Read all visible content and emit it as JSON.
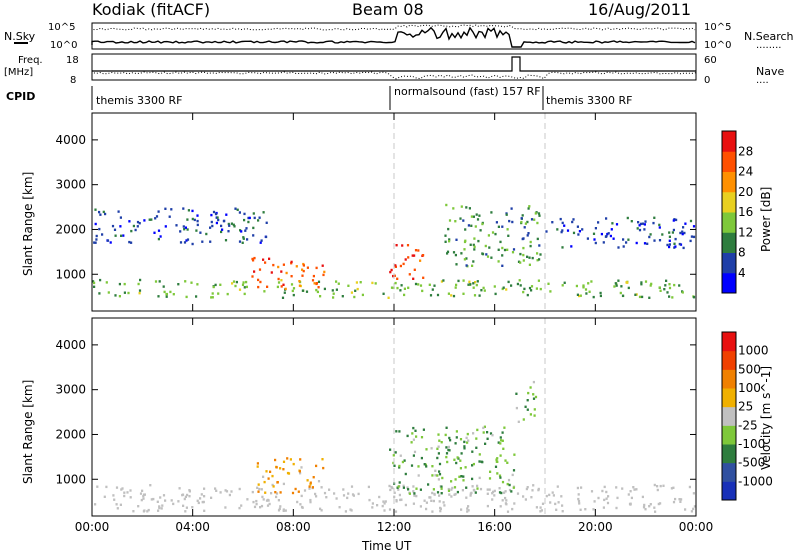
{
  "header": {
    "title": "Kodiak (fitACF)",
    "beam": "Beam 08",
    "date": "16/Aug/2011"
  },
  "strip": {
    "nsky_label": "N.Sky",
    "nsearch_label": "N.Search",
    "nsearch_key": "........",
    "left_ticks": [
      "10^5",
      "10^0"
    ],
    "right_ticks": [
      "10^5",
      "10^0"
    ],
    "freq_label": "Freq.",
    "freq_unit": "[MHz]",
    "freq_ticks": [
      "18",
      "8"
    ],
    "nave_label": "Nave",
    "nave_key": "....",
    "nave_ticks": [
      "60",
      "0"
    ],
    "cpid_label": "CPID",
    "cpid_segments": [
      {
        "label": "themis 3300 RF",
        "start": 0,
        "end": 12
      },
      {
        "label": "normalsound (fast) 157 RF",
        "start": 12,
        "end": 18
      },
      {
        "label": "themis 3300 RF",
        "start": 18,
        "end": 24
      }
    ]
  },
  "colors": {
    "frame": "#000000",
    "guide": "#c8c8c8",
    "ground_scatter": "#c0c0c0"
  },
  "chart_data": [
    {
      "type": "heatmap",
      "name": "power",
      "xlabel": "Time UT",
      "ylabel": "Slant Range [km]",
      "xlim": [
        0,
        24
      ],
      "ylim": [
        180,
        4600
      ],
      "x_ticks": [
        "00:00",
        "04:00",
        "08:00",
        "12:00",
        "16:00",
        "20:00",
        "00:00"
      ],
      "y_ticks": [
        1000,
        2000,
        3000,
        4000
      ],
      "colorbar_label": "Power [dB]",
      "colorbar_ticks": [
        "28",
        "24",
        "20",
        "16",
        "12",
        "8",
        "4"
      ],
      "colorbar_colors": [
        "#0000ff",
        "#1f3fa8",
        "#2e7d3e",
        "#7ec83a",
        "#e8d020",
        "#ff9000",
        "#ff5000",
        "#e81010"
      ],
      "ranges": [
        0,
        30
      ],
      "scatter_regions": [
        {
          "t0": 0,
          "t1": 24,
          "r0": 500,
          "r1": 900,
          "v": 12
        },
        {
          "t0": 6.3,
          "t1": 9.2,
          "r0": 700,
          "r1": 1400,
          "v": 24
        },
        {
          "t0": 11.8,
          "t1": 13.2,
          "r0": 900,
          "r1": 1700,
          "v": 26
        },
        {
          "t0": 0,
          "t1": 7,
          "r0": 1700,
          "r1": 2500,
          "v": 6
        },
        {
          "t0": 14,
          "t1": 17.8,
          "r0": 1200,
          "r1": 2600,
          "v": 10
        },
        {
          "t0": 18,
          "t1": 24,
          "r0": 1600,
          "r1": 2300,
          "v": 5
        }
      ]
    },
    {
      "type": "heatmap",
      "name": "velocity",
      "xlabel": "Time UT",
      "ylabel": "Slant Range [km]",
      "xlim": [
        0,
        24
      ],
      "ylim": [
        180,
        4600
      ],
      "x_ticks": [
        "00:00",
        "04:00",
        "08:00",
        "12:00",
        "16:00",
        "20:00",
        "00:00"
      ],
      "y_ticks": [
        1000,
        2000,
        3000,
        4000
      ],
      "colorbar_label": "Velocity [m s^-1]",
      "colorbar_ticks": [
        "1000",
        "500",
        "100",
        "25",
        "-25",
        "-100",
        "-500",
        "-1000"
      ],
      "colorbar_colors": [
        "#1830b8",
        "#3050a0",
        "#2e7d3e",
        "#7ec83a",
        "#c0c0c0",
        "#f0b000",
        "#f08000",
        "#f04000",
        "#e81010"
      ],
      "ranges": [
        -1000,
        1000
      ],
      "scatter_regions": [
        {
          "t0": 0,
          "t1": 24,
          "r0": 300,
          "r1": 900,
          "v": 0
        },
        {
          "t0": 6.5,
          "t1": 9.2,
          "r0": 700,
          "r1": 1500,
          "v": 300
        },
        {
          "t0": 11.8,
          "t1": 16.8,
          "r0": 700,
          "r1": 2200,
          "v": -300
        },
        {
          "t0": 16.8,
          "t1": 17.6,
          "r0": 2300,
          "r1": 3200,
          "v": -300
        }
      ]
    }
  ]
}
